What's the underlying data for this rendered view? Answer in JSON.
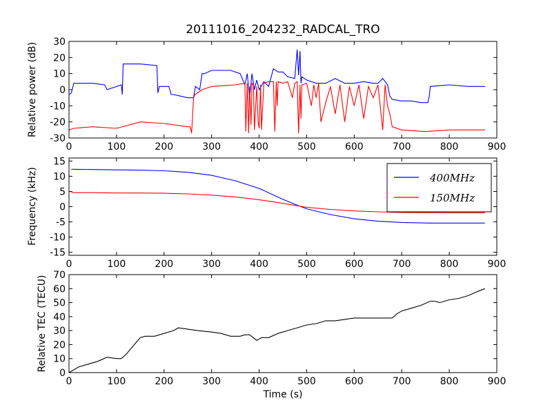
{
  "figure": {
    "title": "20111016_204232_RADCAL_TRO"
  },
  "chart_data": [
    {
      "id": "power",
      "type": "line",
      "ylabel": "Relative power (dB)",
      "xlabel": "",
      "xlim": [
        0,
        900
      ],
      "ylim": [
        -30,
        30
      ],
      "xticks": [
        0,
        100,
        200,
        300,
        400,
        500,
        600,
        700,
        800,
        900
      ],
      "yticks": [
        -30,
        -20,
        -10,
        0,
        10,
        20,
        30
      ],
      "grid": false,
      "legend": null,
      "series": [
        {
          "color": "#0000ff",
          "x": [
            0,
            5,
            10,
            50,
            75,
            80,
            110,
            112,
            114,
            150,
            185,
            187,
            190,
            210,
            215,
            220,
            250,
            262,
            266,
            275,
            280,
            285,
            300,
            320,
            340,
            360,
            370,
            375,
            380,
            385,
            390,
            395,
            400,
            410,
            420,
            430,
            440,
            450,
            460,
            475,
            480,
            483,
            486,
            488,
            490,
            495,
            500,
            520,
            540,
            560,
            580,
            600,
            620,
            640,
            650,
            660,
            670,
            675,
            680,
            700,
            720,
            740,
            755,
            758,
            760,
            800,
            840,
            875
          ],
          "values": [
            -3,
            -2,
            4,
            4,
            3,
            0,
            3,
            -3,
            16,
            16,
            15,
            -2,
            2,
            2,
            -3,
            -3,
            -5,
            -5,
            2,
            0,
            10,
            10,
            12,
            12,
            12,
            10,
            3,
            10,
            -5,
            10,
            0,
            6,
            0,
            5,
            2,
            13,
            11,
            11,
            8,
            7,
            25,
            9,
            24,
            4,
            8,
            7,
            6,
            4,
            4,
            7,
            4,
            4,
            5,
            4,
            4,
            7,
            3,
            -4,
            -6,
            -7,
            -7,
            -8,
            -8,
            -4,
            2,
            3,
            2,
            2
          ]
        },
        {
          "color": "#ff0000",
          "x": [
            0,
            10,
            50,
            100,
            150,
            200,
            250,
            255,
            258,
            262,
            265,
            280,
            300,
            350,
            370,
            372,
            375,
            378,
            380,
            383,
            385,
            388,
            390,
            395,
            398,
            400,
            403,
            405,
            410,
            420,
            430,
            433,
            436,
            438,
            440,
            450,
            460,
            470,
            475,
            480,
            483,
            486,
            488,
            490,
            500,
            510,
            515,
            520,
            525,
            530,
            540,
            550,
            560,
            570,
            580,
            590,
            600,
            610,
            620,
            630,
            640,
            650,
            660,
            665,
            670,
            675,
            680,
            700,
            750,
            800,
            850,
            875
          ],
          "values": [
            -25,
            -24,
            -23,
            -24,
            -20,
            -21,
            -23,
            -23,
            -27,
            -5,
            -3,
            0,
            2,
            3,
            4,
            -26,
            4,
            -27,
            2,
            -22,
            4,
            3,
            -25,
            2,
            -20,
            -24,
            3,
            -25,
            4,
            5,
            5,
            -26,
            5,
            -10,
            5,
            4,
            5,
            -5,
            4,
            5,
            -27,
            3,
            -18,
            3,
            4,
            -10,
            3,
            -5,
            4,
            -20,
            -8,
            2,
            -15,
            3,
            -20,
            2,
            -10,
            3,
            -18,
            2,
            -5,
            3,
            -25,
            3,
            -10,
            -15,
            -23,
            -25,
            -26,
            -25,
            -25,
            -25
          ]
        }
      ]
    },
    {
      "id": "frequency",
      "type": "line",
      "ylabel": "Frequency (kHz)",
      "xlabel": "",
      "xlim": [
        0,
        900
      ],
      "ylim": [
        -16,
        16
      ],
      "xticks": [
        0,
        100,
        200,
        300,
        400,
        500,
        600,
        700,
        800,
        900
      ],
      "yticks": [
        -15,
        -10,
        -5,
        0,
        5,
        10,
        15
      ],
      "grid": false,
      "legend": "top-right",
      "series": [
        {
          "name": "400MHz",
          "color": "#0000ff",
          "x": [
            5,
            50,
            100,
            150,
            200,
            250,
            300,
            350,
            400,
            425,
            450,
            475,
            500,
            550,
            600,
            650,
            700,
            760,
            800,
            875
          ],
          "values": [
            12.3,
            12.2,
            12.1,
            12.0,
            11.8,
            11.3,
            10.3,
            8.5,
            6.0,
            4.2,
            2.4,
            0.8,
            -0.7,
            -2.6,
            -4.0,
            -4.8,
            -5.2,
            -5.4,
            -5.4,
            -5.4
          ]
        },
        {
          "name": "150MHz",
          "color": "#ff0000",
          "x": [
            5,
            50,
            100,
            150,
            200,
            250,
            300,
            350,
            400,
            450,
            500,
            550,
            600,
            650,
            700,
            800,
            875
          ],
          "values": [
            4.6,
            4.6,
            4.5,
            4.5,
            4.4,
            4.2,
            3.8,
            3.2,
            2.3,
            1.1,
            -0.2,
            -0.9,
            -1.4,
            -1.7,
            -1.9,
            -2.0,
            -2.0
          ]
        }
      ]
    },
    {
      "id": "tec",
      "type": "line",
      "ylabel": "Relative TEC (TECU)",
      "xlabel": "Time (s)",
      "xlim": [
        0,
        900
      ],
      "ylim": [
        0,
        70
      ],
      "xticks": [
        0,
        100,
        200,
        300,
        400,
        500,
        600,
        700,
        800,
        900
      ],
      "yticks": [
        0,
        10,
        20,
        30,
        40,
        50,
        60,
        70
      ],
      "grid": false,
      "legend": null,
      "series": [
        {
          "color": "#000000",
          "x": [
            0,
            5,
            20,
            40,
            60,
            80,
            100,
            110,
            120,
            140,
            150,
            160,
            180,
            200,
            220,
            230,
            250,
            270,
            300,
            320,
            340,
            360,
            370,
            380,
            395,
            405,
            420,
            440,
            460,
            480,
            500,
            520,
            540,
            560,
            580,
            600,
            620,
            640,
            660,
            680,
            690,
            700,
            720,
            740,
            760,
            770,
            780,
            800,
            820,
            840,
            860,
            875
          ],
          "values": [
            0,
            1,
            4,
            6,
            8,
            11,
            10,
            10,
            13,
            21,
            25,
            26,
            26,
            28,
            30,
            32,
            31,
            30,
            29,
            28,
            26,
            26,
            27,
            27,
            23,
            25,
            25,
            28,
            30,
            32,
            34,
            35,
            37,
            37,
            38,
            39,
            39,
            39,
            39,
            39,
            42,
            44,
            46,
            48,
            51,
            51,
            50,
            52,
            53,
            55,
            58,
            60
          ]
        }
      ]
    }
  ]
}
